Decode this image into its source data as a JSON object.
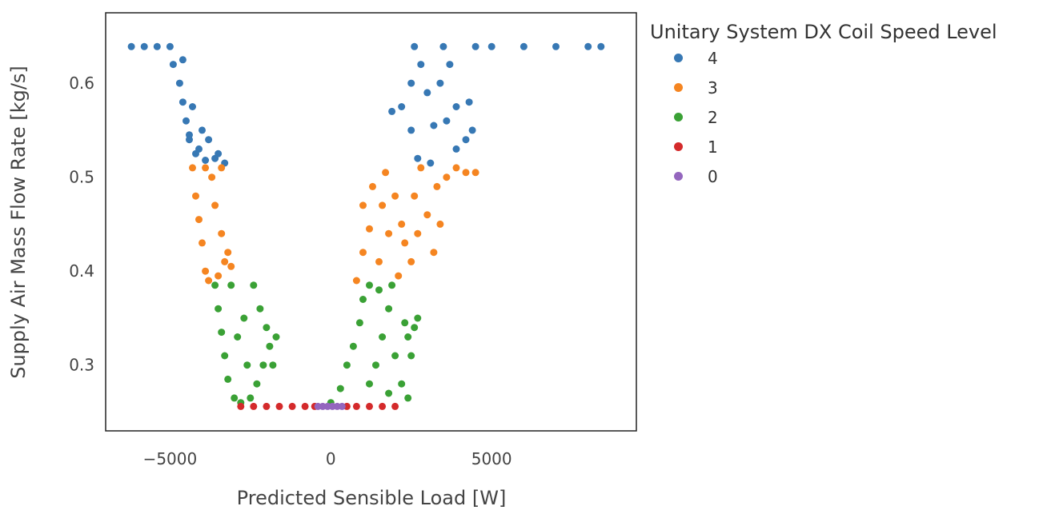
{
  "chart_data": {
    "type": "scatter",
    "title": "",
    "xlabel": "Predicted Sensible Load [W]",
    "ylabel": "Supply Air Mass Flow Rate [kg/s]",
    "xlim": [
      -7000,
      9500
    ],
    "ylim": [
      0.23,
      0.675
    ],
    "xticks": [
      -5000,
      0,
      5000
    ],
    "xtick_labels": [
      "−5000",
      "0",
      "5000"
    ],
    "yticks": [
      0.3,
      0.4,
      0.5,
      0.6
    ],
    "ytick_labels": [
      "0.3",
      "0.4",
      "0.5",
      "0.6"
    ],
    "grid": false,
    "legend": {
      "title": "Unitary System DX Coil Speed Level",
      "placement": "right"
    },
    "series": [
      {
        "name": "4",
        "color": "#3778b4",
        "points": [
          [
            -6200,
            0.639
          ],
          [
            -5800,
            0.639
          ],
          [
            -5400,
            0.639
          ],
          [
            -5000,
            0.639
          ],
          [
            -4900,
            0.62
          ],
          [
            -4700,
            0.6
          ],
          [
            -4600,
            0.58
          ],
          [
            -4500,
            0.56
          ],
          [
            -4400,
            0.54
          ],
          [
            -4200,
            0.525
          ],
          [
            -3900,
            0.518
          ],
          [
            -3600,
            0.52
          ],
          [
            -4000,
            0.55
          ],
          [
            -4300,
            0.575
          ],
          [
            -4600,
            0.625
          ],
          [
            -4400,
            0.545
          ],
          [
            -4100,
            0.53
          ],
          [
            -3800,
            0.54
          ],
          [
            -3500,
            0.525
          ],
          [
            -3300,
            0.515
          ],
          [
            1900,
            0.57
          ],
          [
            2200,
            0.575
          ],
          [
            2500,
            0.55
          ],
          [
            2500,
            0.6
          ],
          [
            2600,
            0.639
          ],
          [
            2800,
            0.62
          ],
          [
            3000,
            0.59
          ],
          [
            3200,
            0.555
          ],
          [
            3400,
            0.6
          ],
          [
            3500,
            0.639
          ],
          [
            3700,
            0.62
          ],
          [
            3900,
            0.575
          ],
          [
            3900,
            0.53
          ],
          [
            4200,
            0.54
          ],
          [
            4300,
            0.58
          ],
          [
            4400,
            0.55
          ],
          [
            2700,
            0.52
          ],
          [
            3100,
            0.515
          ],
          [
            5000,
            0.639
          ],
          [
            6000,
            0.639
          ],
          [
            7000,
            0.639
          ],
          [
            8000,
            0.639
          ],
          [
            8400,
            0.639
          ],
          [
            4500,
            0.639
          ],
          [
            3600,
            0.56
          ]
        ]
      },
      {
        "name": "3",
        "color": "#f58521",
        "points": [
          [
            -4300,
            0.51
          ],
          [
            -4200,
            0.48
          ],
          [
            -4100,
            0.455
          ],
          [
            -4000,
            0.43
          ],
          [
            -3900,
            0.4
          ],
          [
            -3800,
            0.39
          ],
          [
            -3500,
            0.395
          ],
          [
            -3300,
            0.41
          ],
          [
            -3100,
            0.405
          ],
          [
            -3400,
            0.44
          ],
          [
            -3600,
            0.47
          ],
          [
            -3700,
            0.5
          ],
          [
            -3400,
            0.51
          ],
          [
            -3900,
            0.51
          ],
          [
            -3200,
            0.42
          ],
          [
            800,
            0.39
          ],
          [
            1000,
            0.42
          ],
          [
            1200,
            0.445
          ],
          [
            1000,
            0.47
          ],
          [
            1300,
            0.49
          ],
          [
            1700,
            0.505
          ],
          [
            2000,
            0.48
          ],
          [
            2200,
            0.45
          ],
          [
            1800,
            0.44
          ],
          [
            1500,
            0.41
          ],
          [
            2100,
            0.395
          ],
          [
            2500,
            0.41
          ],
          [
            2700,
            0.44
          ],
          [
            3000,
            0.46
          ],
          [
            3300,
            0.49
          ],
          [
            3600,
            0.5
          ],
          [
            3900,
            0.51
          ],
          [
            4200,
            0.505
          ],
          [
            4500,
            0.505
          ],
          [
            3200,
            0.42
          ],
          [
            2800,
            0.51
          ],
          [
            2600,
            0.48
          ],
          [
            3400,
            0.45
          ],
          [
            2300,
            0.43
          ],
          [
            1600,
            0.47
          ]
        ]
      },
      {
        "name": "2",
        "color": "#3aa135",
        "points": [
          [
            -3600,
            0.385
          ],
          [
            -3500,
            0.36
          ],
          [
            -3400,
            0.335
          ],
          [
            -3300,
            0.31
          ],
          [
            -3200,
            0.285
          ],
          [
            -3000,
            0.265
          ],
          [
            -2800,
            0.26
          ],
          [
            -2500,
            0.265
          ],
          [
            -2300,
            0.28
          ],
          [
            -2100,
            0.3
          ],
          [
            -1900,
            0.32
          ],
          [
            -2000,
            0.34
          ],
          [
            -2200,
            0.36
          ],
          [
            -2400,
            0.385
          ],
          [
            -3100,
            0.385
          ],
          [
            -2900,
            0.33
          ],
          [
            -2600,
            0.3
          ],
          [
            -1700,
            0.33
          ],
          [
            -1800,
            0.3
          ],
          [
            -2700,
            0.35
          ],
          [
            0,
            0.26
          ],
          [
            300,
            0.275
          ],
          [
            500,
            0.3
          ],
          [
            700,
            0.32
          ],
          [
            900,
            0.345
          ],
          [
            1000,
            0.37
          ],
          [
            1200,
            0.385
          ],
          [
            1500,
            0.38
          ],
          [
            1800,
            0.36
          ],
          [
            1600,
            0.33
          ],
          [
            1400,
            0.3
          ],
          [
            1200,
            0.28
          ],
          [
            2000,
            0.31
          ],
          [
            2200,
            0.28
          ],
          [
            2400,
            0.265
          ],
          [
            1900,
            0.385
          ],
          [
            2300,
            0.345
          ],
          [
            2400,
            0.33
          ],
          [
            2600,
            0.34
          ],
          [
            2700,
            0.35
          ],
          [
            2500,
            0.31
          ],
          [
            1800,
            0.27
          ]
        ]
      },
      {
        "name": "1",
        "color": "#d42a2b",
        "points": [
          [
            -2800,
            0.256
          ],
          [
            -2400,
            0.256
          ],
          [
            -2000,
            0.256
          ],
          [
            -1600,
            0.256
          ],
          [
            -1200,
            0.256
          ],
          [
            -800,
            0.256
          ],
          [
            -500,
            0.256
          ],
          [
            500,
            0.256
          ],
          [
            800,
            0.256
          ],
          [
            1200,
            0.256
          ],
          [
            1600,
            0.256
          ],
          [
            2000,
            0.256
          ]
        ]
      },
      {
        "name": "0",
        "color": "#9466be",
        "points": [
          [
            -400,
            0.256
          ],
          [
            -250,
            0.256
          ],
          [
            -100,
            0.256
          ],
          [
            50,
            0.256
          ],
          [
            200,
            0.256
          ],
          [
            350,
            0.256
          ]
        ]
      }
    ]
  }
}
